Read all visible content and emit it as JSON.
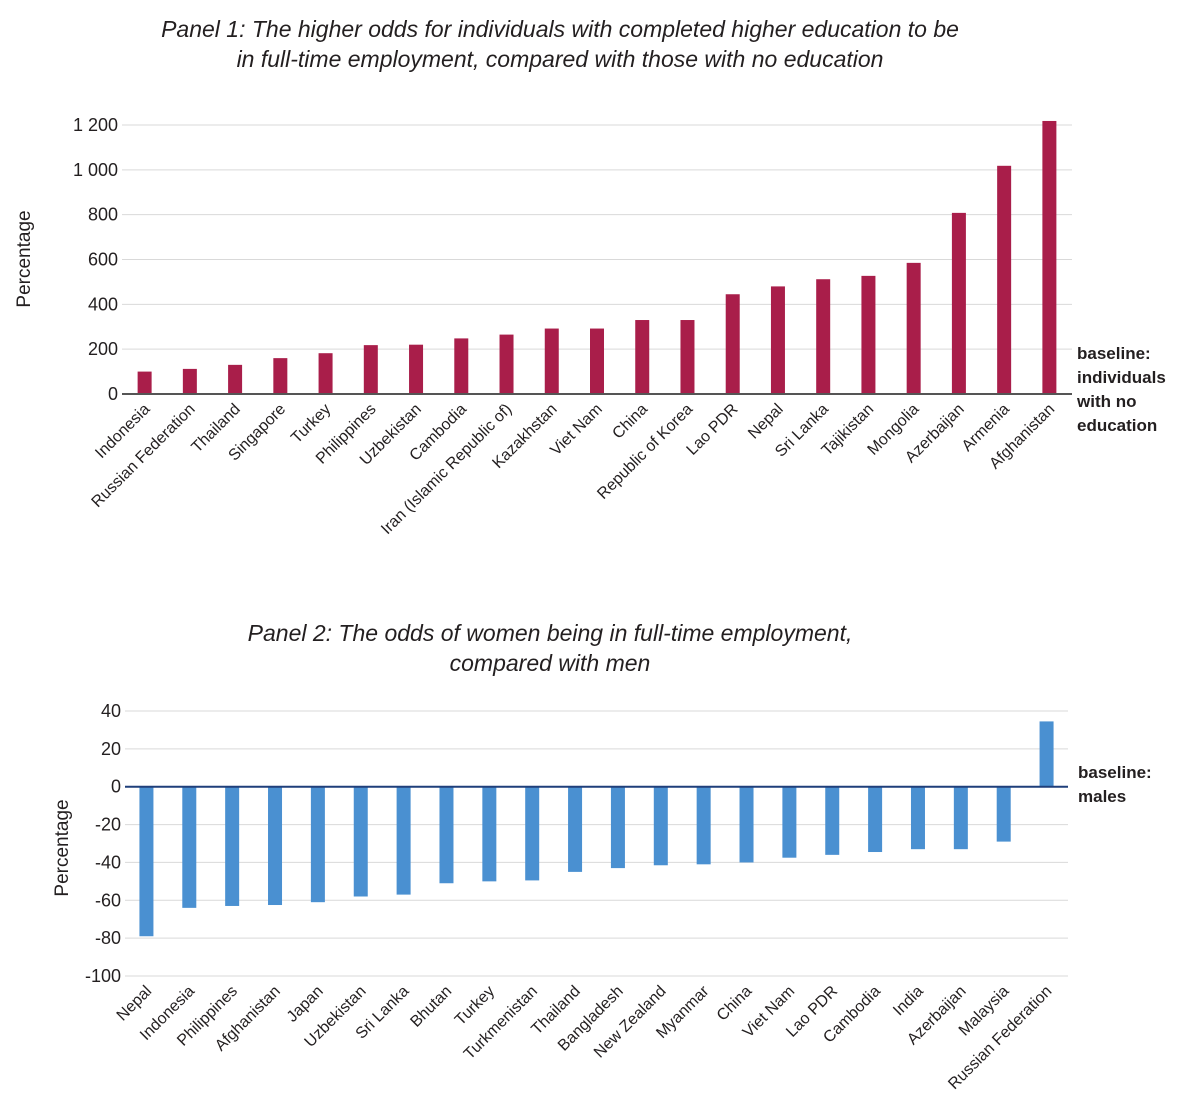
{
  "chart_data": [
    {
      "type": "bar",
      "title": [
        "Panel 1: The higher odds for individuals with completed higher education to be",
        "in full-time employment, compared with those with no education"
      ],
      "xlabel": "",
      "ylabel": "Percentage",
      "ylim": [
        0,
        1200
      ],
      "yticks": [
        0,
        200,
        400,
        600,
        800,
        1000,
        1200
      ],
      "ytick_labels": [
        "0",
        "200",
        "400",
        "600",
        "800",
        "1 000",
        "1 200"
      ],
      "grid": true,
      "color": "#a91e4a",
      "annotation": [
        "baseline:",
        "individuals",
        "with no",
        "education"
      ],
      "categories": [
        "Indonesia",
        "Russian Federation",
        "Thailand",
        "Singapore",
        "Turkey",
        "Philippines",
        "Uzbekistan",
        "Cambodia",
        "Iran (Islamic Republic of)",
        "Kazakhstan",
        "Viet Nam",
        "China",
        "Republic of Korea",
        "Lao PDR",
        "Nepal",
        "Sri Lanka",
        "Tajikistan",
        "Mongolia",
        "Azerbaijan",
        "Armenia",
        "Afghanistan"
      ],
      "values": [
        100,
        112,
        130,
        160,
        182,
        218,
        220,
        248,
        265,
        292,
        292,
        330,
        330,
        445,
        480,
        512,
        527,
        585,
        808,
        1018,
        1218
      ]
    },
    {
      "type": "bar",
      "title": [
        "Panel 2: The odds of women being in full-time employment,",
        "compared with men"
      ],
      "xlabel": "",
      "ylabel": "Percentage",
      "ylim": [
        -100,
        40
      ],
      "yticks": [
        -100,
        -80,
        -60,
        -40,
        -20,
        0,
        20,
        40
      ],
      "ytick_labels": [
        "-100",
        "-80",
        "-60",
        "-40",
        "-20",
        "0",
        "20",
        "40"
      ],
      "grid": true,
      "color": "#4a90d1",
      "annotation": [
        "baseline:",
        "males"
      ],
      "categories": [
        "Nepal",
        "Indonesia",
        "Philippines",
        "Afghanistan",
        "Japan",
        "Uzbekistan",
        "Sri Lanka",
        "Bhutan",
        "Turkey",
        "Turkmenistan",
        "Thailand",
        "Bangladesh",
        "New Zealand",
        "Myanmar",
        "China",
        "Viet Nam",
        "Lao PDR",
        "Cambodia",
        "India",
        "Azerbaijan",
        "Malaysia",
        "Russian Federation"
      ],
      "values": [
        -79,
        -64,
        -63,
        -62.5,
        -61,
        -58,
        -57,
        -51,
        -50,
        -49.5,
        -45,
        -43,
        -41.5,
        -41,
        -40,
        -37.5,
        -36,
        -34.5,
        -33,
        -33,
        -29,
        34.5
      ]
    }
  ]
}
